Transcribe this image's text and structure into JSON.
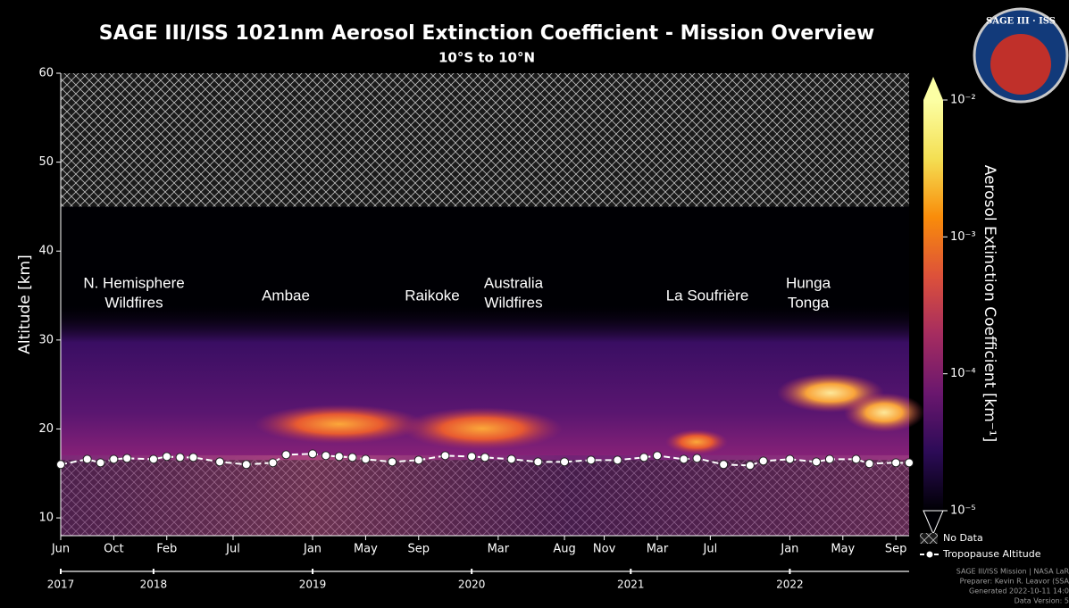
{
  "chart_data": {
    "type": "heatmap",
    "title": "SAGE III/ISS 1021nm Aerosol Extinction Coefficient - Mission Overview",
    "subtitle": "10°S to 10°N",
    "y_label": "Altitude [km]",
    "ylim": [
      8,
      60
    ],
    "yticks": [
      10,
      20,
      30,
      40,
      50,
      60
    ],
    "xlim": [
      "2017-06",
      "2022-10"
    ],
    "xticks": [
      {
        "value": "2017-06",
        "label": "Jun"
      },
      {
        "value": "2017-10",
        "label": "Oct"
      },
      {
        "value": "2018-02",
        "label": "Feb"
      },
      {
        "value": "2018-07",
        "label": "Jul"
      },
      {
        "value": "2019-01",
        "label": "Jan"
      },
      {
        "value": "2019-05",
        "label": "May"
      },
      {
        "value": "2019-09",
        "label": "Sep"
      },
      {
        "value": "2020-03",
        "label": "Mar"
      },
      {
        "value": "2020-08",
        "label": "Aug"
      },
      {
        "value": "2020-11",
        "label": "Nov"
      },
      {
        "value": "2021-03",
        "label": "Mar"
      },
      {
        "value": "2021-07",
        "label": "Jul"
      },
      {
        "value": "2022-01",
        "label": "Jan"
      },
      {
        "value": "2022-05",
        "label": "May"
      },
      {
        "value": "2022-09",
        "label": "Sep"
      }
    ],
    "year_ticks": [
      {
        "value": "2017-06",
        "label": "2017"
      },
      {
        "value": "2018-01",
        "label": "2018"
      },
      {
        "value": "2019-01",
        "label": "2019"
      },
      {
        "value": "2020-01",
        "label": "2020"
      },
      {
        "value": "2021-01",
        "label": "2021"
      },
      {
        "value": "2022-01",
        "label": "2022"
      }
    ],
    "no_data_above": 45,
    "no_data_label": "No Data",
    "annotations": [
      {
        "lines": [
          "N. Hemisphere",
          "Wildfires"
        ]
      },
      {
        "lines": [
          "Ambae"
        ]
      },
      {
        "lines": [
          "Raikoke"
        ]
      },
      {
        "lines": [
          "Australia",
          "Wildfires"
        ]
      },
      {
        "lines": [
          "La Soufrière"
        ]
      },
      {
        "lines": [
          "Hunga",
          "Tonga"
        ]
      }
    ],
    "colorbar": {
      "label": "Aerosol Extinction Coefficient [km⁻¹]",
      "log": true,
      "lim": [
        1e-05,
        0.01
      ],
      "ticks": [
        {
          "value": 1e-05,
          "label": "10⁻⁵"
        },
        {
          "value": 0.0001,
          "label": "10⁻⁴"
        },
        {
          "value": 0.001,
          "label": "10⁻³"
        },
        {
          "value": 0.01,
          "label": "10⁻²"
        }
      ],
      "colors": [
        "#000004",
        "#2c0b57",
        "#6a176e",
        "#a52c60",
        "#dd513a",
        "#f98c0a",
        "#f4df53",
        "#fcffa4"
      ]
    },
    "series": [
      {
        "name": "Tropopause Altitude",
        "color": "#ffffff",
        "x": [
          "2017-06",
          "2017-08",
          "2017-09",
          "2017-10",
          "2017-11",
          "2018-01",
          "2018-02",
          "2018-03",
          "2018-04",
          "2018-06",
          "2018-08",
          "2018-10",
          "2018-11",
          "2019-01",
          "2019-02",
          "2019-03",
          "2019-04",
          "2019-05",
          "2019-07",
          "2019-09",
          "2019-11",
          "2020-01",
          "2020-02",
          "2020-04",
          "2020-06",
          "2020-08",
          "2020-10",
          "2020-12",
          "2021-02",
          "2021-03",
          "2021-05",
          "2021-06",
          "2021-08",
          "2021-10",
          "2021-11",
          "2022-01",
          "2022-03",
          "2022-04",
          "2022-06",
          "2022-07",
          "2022-09",
          "2022-10"
        ],
        "values": [
          16.0,
          16.6,
          16.2,
          16.6,
          16.7,
          16.6,
          16.9,
          16.8,
          16.8,
          16.3,
          16.0,
          16.2,
          17.1,
          17.2,
          17.0,
          16.9,
          16.8,
          16.6,
          16.3,
          16.5,
          17.0,
          16.9,
          16.8,
          16.6,
          16.3,
          16.3,
          16.5,
          16.5,
          16.8,
          17.0,
          16.6,
          16.7,
          16.0,
          15.9,
          16.4,
          16.6,
          16.3,
          16.6,
          16.6,
          16.1,
          16.2,
          16.2
        ]
      }
    ],
    "logo_text": "SAGE III · ISS",
    "footer": [
      "SAGE III/ISS Mission | NASA LaR",
      "Preparer: Kevin R. Leavor (SSA",
      "Generated 2022-10-11 14:0",
      "Data Version: 5"
    ]
  }
}
